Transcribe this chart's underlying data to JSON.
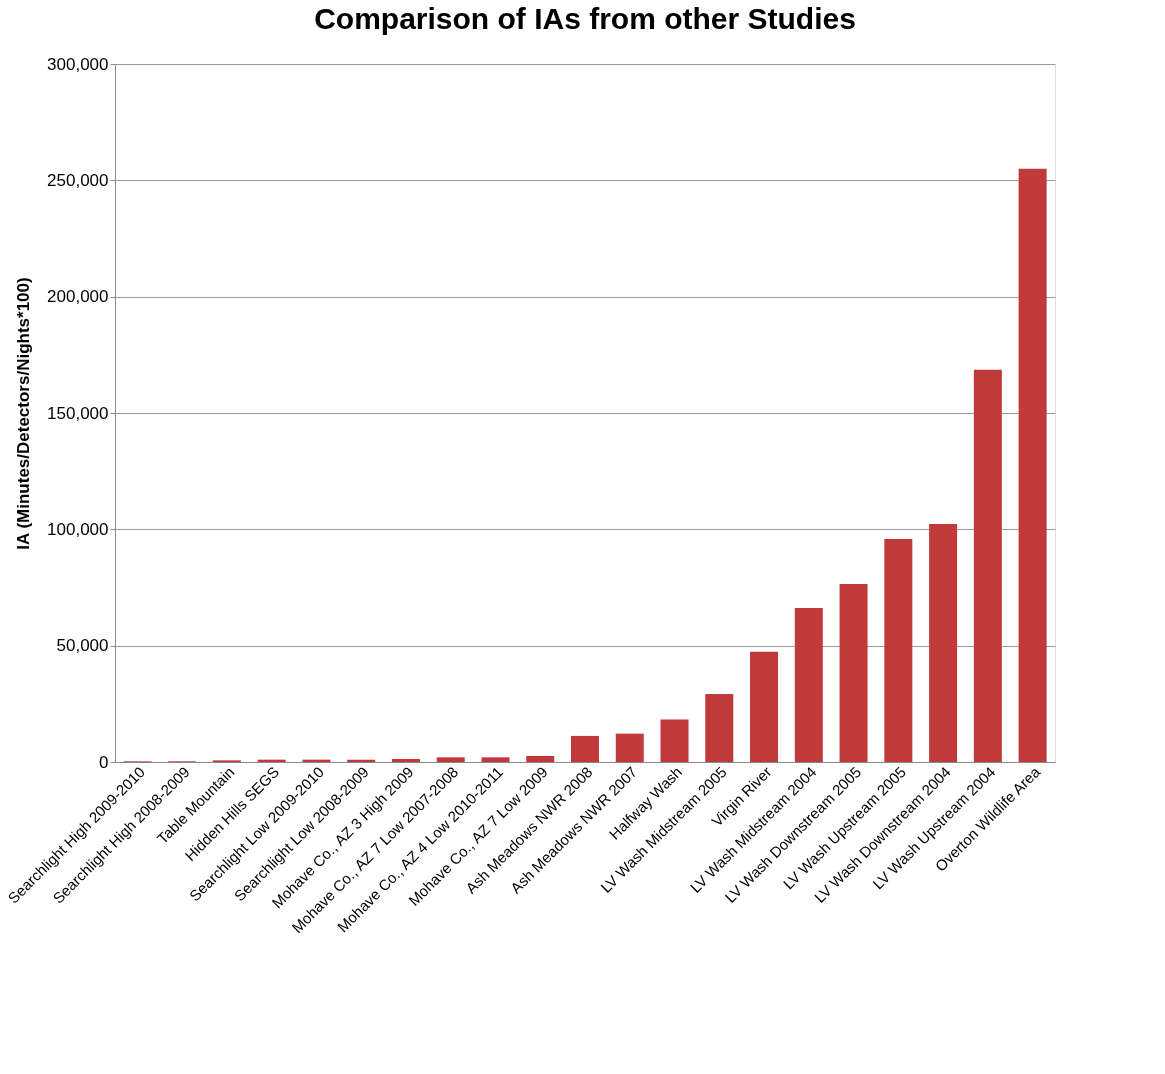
{
  "chart_data": {
    "type": "bar",
    "title": "Comparison of IAs from other Studies",
    "ylabel": "IA (Minutes/Detectors/Nights*100)",
    "categories": [
      "Searchlight High 2009-2010",
      "Searchlight High 2008-2009",
      "Table Mountain",
      "Hidden Hills SEGS",
      "Searchlight Low 2009-2010",
      "Searchlight Low 2008-2009",
      "Mohave Co., AZ 3 High 2009",
      "Mohave Co., AZ 7 Low 2007-2008",
      "Mohave Co., AZ 4 Low 2010-2011",
      "Mohave Co., AZ 7 Low 2009",
      "Ash Meadows NWR 2008",
      "Ash Meadows NWR 2007",
      "Halfway Wash",
      "LV Wash Midstream 2005",
      "Virgin River",
      "LV Wash Midstream 2004",
      "LV Wash Downstream 2005",
      "LV Wash Upstream 2005",
      "LV Wash Downstream 2004",
      "LV Wash Upstream 2004",
      "Overton Wildlife Area"
    ],
    "values": [
      300,
      300,
      700,
      1000,
      1000,
      1000,
      1300,
      2000,
      2000,
      2600,
      11200,
      12200,
      18300,
      29200,
      47400,
      66200,
      76500,
      95800,
      102300,
      168600,
      255000
    ],
    "color": "#c0393b",
    "ylim": [
      0,
      300000
    ],
    "yticks": [
      {
        "value": 0,
        "label": "0"
      },
      {
        "value": 50000,
        "label": "50,000"
      },
      {
        "value": 100000,
        "label": "100,000"
      },
      {
        "value": 150000,
        "label": "150,000"
      },
      {
        "value": 200000,
        "label": "200,000"
      },
      {
        "value": 250000,
        "label": "250,000"
      },
      {
        "value": 300000,
        "label": "300,000"
      }
    ],
    "grid": "y"
  }
}
